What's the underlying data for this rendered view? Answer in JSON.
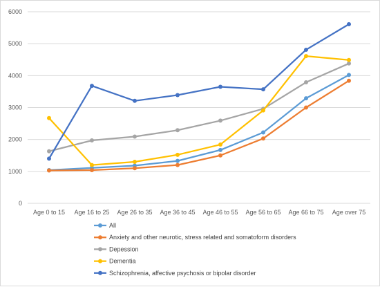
{
  "chart_data": {
    "type": "line",
    "title": "",
    "xlabel": "",
    "ylabel": "",
    "categories": [
      "Age 0 to 15",
      "Age 16 to 25",
      "Age 26 to 35",
      "Age 36 to 45",
      "Age 46 to 55",
      "Age 56 to 65",
      "Age 66 to 75",
      "Age over 75"
    ],
    "ylim": [
      0,
      6000
    ],
    "yticks": [
      "0",
      "1000",
      "2000",
      "3000",
      "4000",
      "5000",
      "6000"
    ],
    "grid": true,
    "legend_position": "bottom",
    "series": [
      {
        "name": "All",
        "color": "#5b9bd5",
        "values": [
          1040,
          1110,
          1180,
          1330,
          1670,
          2220,
          3290,
          4020
        ]
      },
      {
        "name": "Anxiety and other neurotic, stress related and somatoform disorders",
        "color": "#ed7d31",
        "values": [
          1030,
          1040,
          1100,
          1200,
          1500,
          2030,
          3000,
          3840
        ]
      },
      {
        "name": "Depession",
        "color": "#a5a5a5",
        "values": [
          1630,
          1970,
          2090,
          2290,
          2590,
          2960,
          3790,
          4380
        ]
      },
      {
        "name": "Dementia",
        "color": "#ffc000",
        "values": [
          2670,
          1200,
          1300,
          1520,
          1840,
          2910,
          4610,
          4490
        ]
      },
      {
        "name": "Schizophrenia, affective psychosis or bipolar disorder",
        "color": "#4472c4",
        "values": [
          1400,
          3680,
          3210,
          3390,
          3650,
          3570,
          4810,
          5610
        ]
      }
    ]
  }
}
